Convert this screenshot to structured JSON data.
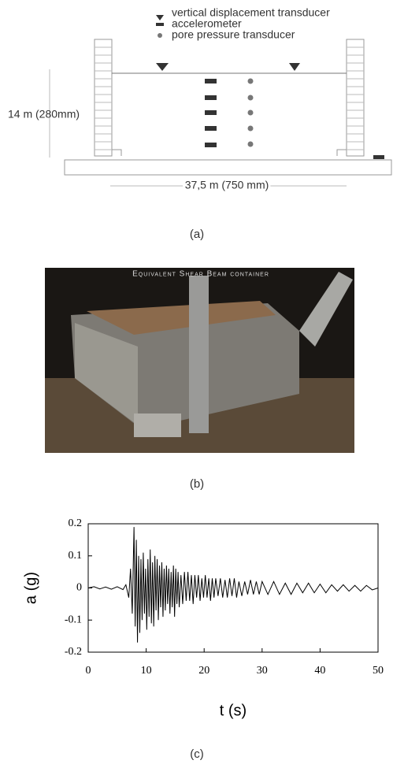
{
  "diagram": {
    "legend": [
      "vertical displacement transducer",
      "accelerometer",
      "pore pressure transducer"
    ],
    "height_label": "14 m (280mm)",
    "width_label": "37,5 m (750 mm)"
  },
  "photo": {
    "caption": "Equivalent Shear Beam container"
  },
  "panel_labels": [
    "(a)",
    "(b)",
    "(c)"
  ],
  "chart_data": {
    "type": "line",
    "xlabel": "t (s)",
    "ylabel": "a (g)",
    "color": "#000000",
    "xlim": [
      0,
      50
    ],
    "ylim": [
      -0.2,
      0.2
    ],
    "xticks": [
      0,
      10,
      20,
      30,
      40,
      50
    ],
    "yticks": [
      0.2,
      0.1,
      0,
      -0.1,
      -0.2
    ],
    "grid": false,
    "x": [
      0,
      1,
      2,
      3,
      4,
      5,
      6,
      6.5,
      7,
      7.3,
      7.6,
      7.9,
      8.1,
      8.3,
      8.5,
      8.7,
      8.9,
      9.1,
      9.3,
      9.5,
      9.7,
      9.9,
      10.1,
      10.3,
      10.5,
      10.7,
      10.9,
      11.1,
      11.3,
      11.5,
      11.7,
      11.9,
      12.1,
      12.3,
      12.5,
      12.7,
      12.9,
      13.1,
      13.3,
      13.5,
      13.7,
      13.9,
      14.1,
      14.3,
      14.5,
      14.7,
      14.9,
      15.1,
      15.3,
      15.5,
      15.7,
      16,
      16.3,
      16.6,
      16.9,
      17.2,
      17.5,
      17.8,
      18.1,
      18.4,
      18.7,
      19,
      19.3,
      19.6,
      19.9,
      20.2,
      20.5,
      20.8,
      21.1,
      21.4,
      21.7,
      22,
      22.4,
      22.8,
      23.2,
      23.6,
      24,
      24.4,
      24.8,
      25.2,
      25.6,
      26,
      26.5,
      27,
      27.5,
      28,
      28.5,
      29,
      29.5,
      30,
      31,
      32,
      33,
      34,
      35,
      36,
      37,
      38,
      39,
      40,
      41,
      42,
      43,
      44,
      45,
      46,
      47,
      48,
      49,
      50
    ],
    "values": [
      0,
      0.004,
      -0.003,
      0.003,
      -0.004,
      0.004,
      -0.005,
      0.01,
      -0.03,
      0.06,
      -0.08,
      0.19,
      -0.12,
      0.15,
      -0.17,
      0.1,
      -0.14,
      0.09,
      -0.1,
      0.11,
      -0.08,
      0.06,
      -0.13,
      0.09,
      -0.09,
      0.12,
      -0.11,
      0.08,
      -0.12,
      0.1,
      -0.07,
      0.09,
      -0.1,
      0.07,
      -0.06,
      0.08,
      -0.09,
      0.06,
      -0.07,
      0.07,
      -0.05,
      0.06,
      -0.08,
      0.05,
      -0.06,
      0.07,
      -0.09,
      0.06,
      -0.05,
      0.05,
      -0.06,
      0.04,
      -0.05,
      0.05,
      -0.04,
      0.05,
      -0.04,
      0.04,
      -0.05,
      0.04,
      -0.03,
      0.04,
      -0.04,
      0.03,
      -0.03,
      0.04,
      -0.03,
      0.03,
      -0.04,
      0.03,
      -0.03,
      0.03,
      -0.025,
      0.03,
      -0.03,
      0.025,
      -0.03,
      0.03,
      -0.025,
      0.03,
      -0.03,
      0.02,
      -0.025,
      0.02,
      -0.02,
      0.025,
      -0.02,
      0.02,
      -0.02,
      0.02,
      -0.02,
      0.02,
      -0.02,
      0.015,
      -0.02,
      0.015,
      -0.015,
      0.015,
      -0.015,
      0.012,
      -0.015,
      0.01,
      -0.01,
      0.01,
      -0.01,
      0.008,
      -0.01,
      0.008,
      -0.006,
      0
    ]
  }
}
